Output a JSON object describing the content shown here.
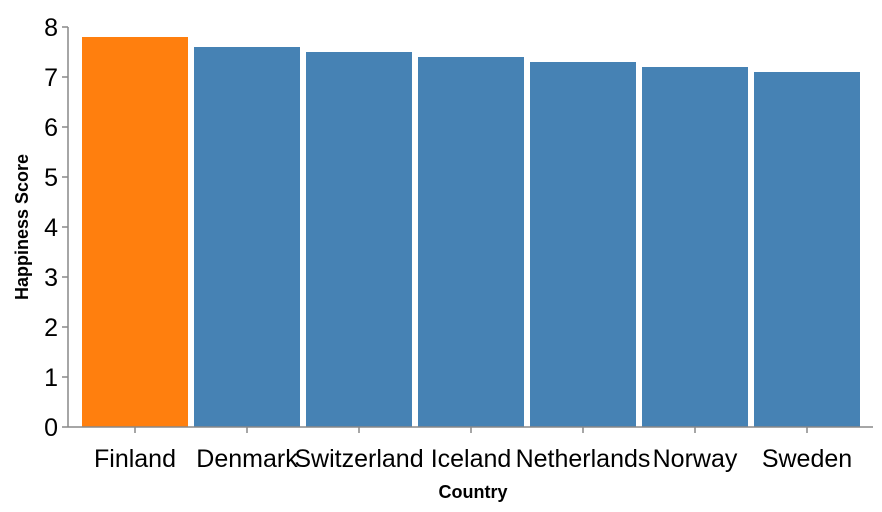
{
  "chart_data": {
    "type": "bar",
    "categories": [
      "Finland",
      "Denmark",
      "Switzerland",
      "Iceland",
      "Netherlands",
      "Norway",
      "Sweden"
    ],
    "values": [
      7.8,
      7.6,
      7.5,
      7.4,
      7.3,
      7.2,
      7.1
    ],
    "xlabel": "Country",
    "ylabel": "Happiness Score",
    "ylim": [
      0,
      8
    ],
    "yticks": [
      0,
      1,
      2,
      3,
      4,
      5,
      6,
      7,
      8
    ],
    "grid": false,
    "colors": {
      "default": "#4682b4",
      "highlight": "#ff7f0e"
    },
    "highlight_index": 0
  }
}
